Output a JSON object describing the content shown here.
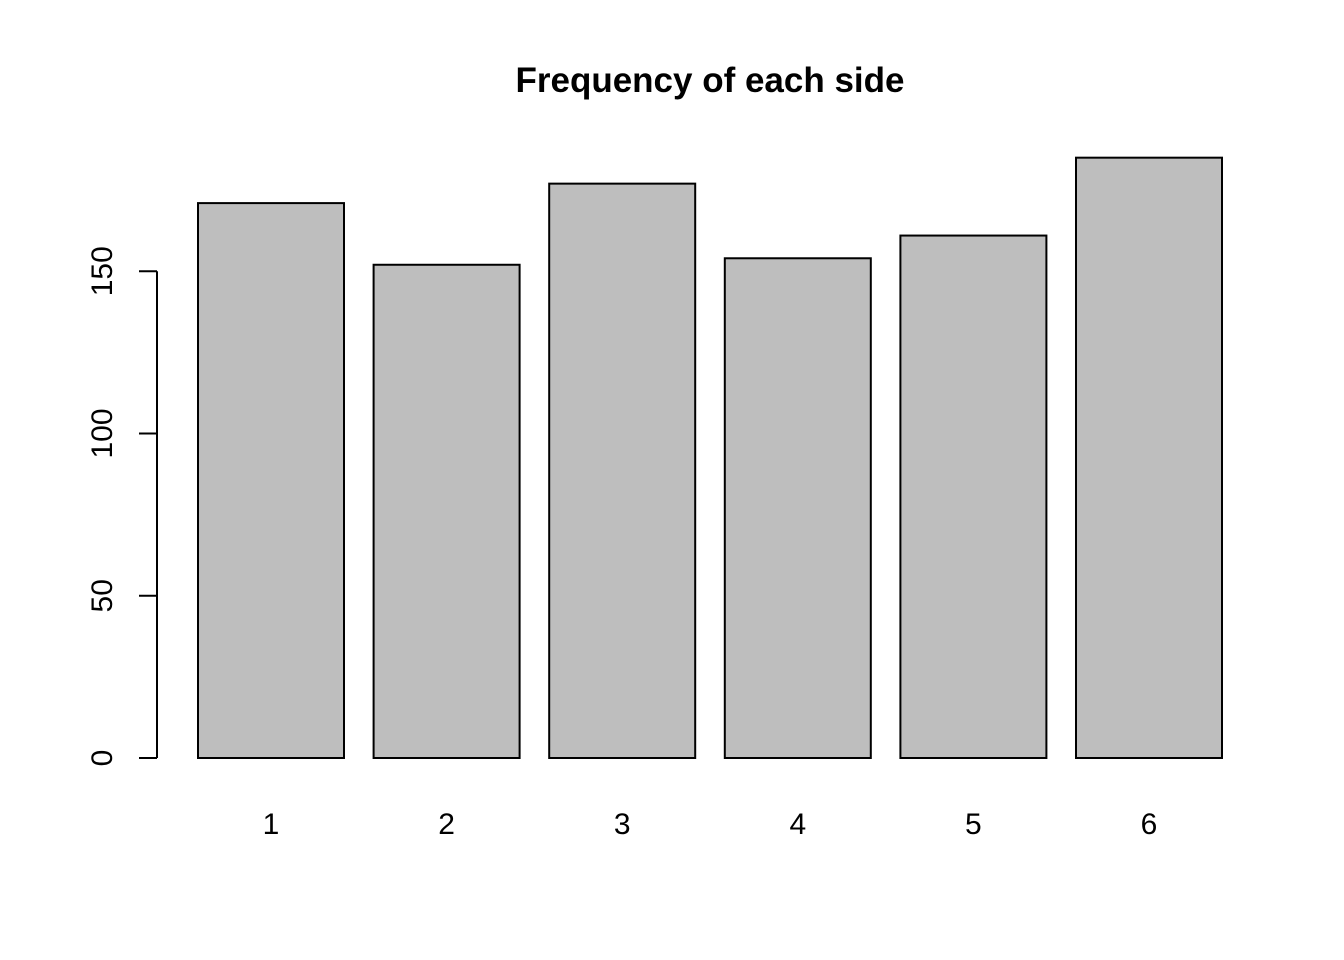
{
  "chart_data": {
    "type": "bar",
    "title": "Frequency of each side",
    "xlabel": "",
    "ylabel": "",
    "categories": [
      "1",
      "2",
      "3",
      "4",
      "5",
      "6"
    ],
    "values": [
      171,
      152,
      177,
      154,
      161,
      185
    ],
    "ylim": [
      0,
      185
    ],
    "yticks": [
      0,
      50,
      100,
      150
    ],
    "ytick_labels": [
      "0",
      "50",
      "100",
      "150"
    ],
    "grid": false,
    "bar_fill": "#bebebe",
    "bar_border": "#000000"
  }
}
